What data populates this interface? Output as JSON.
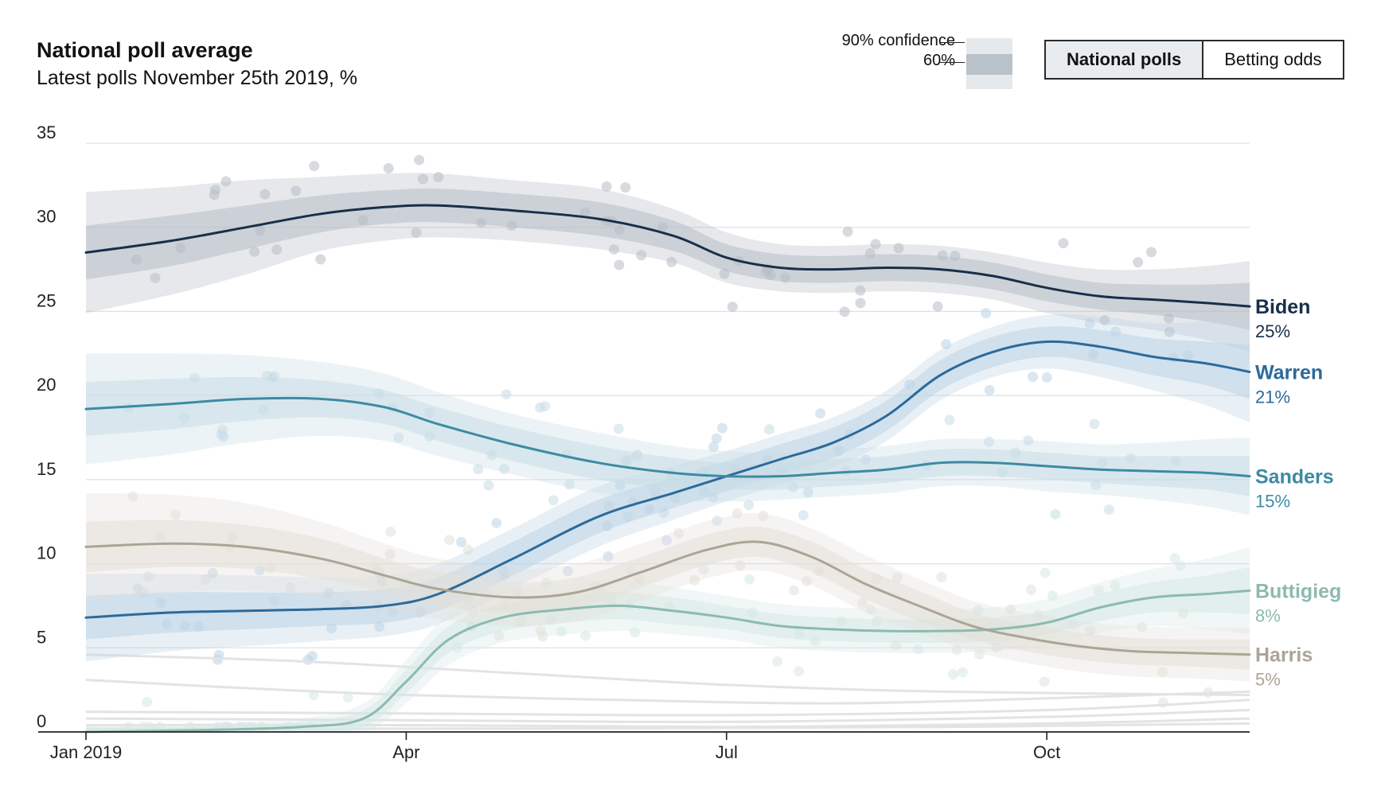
{
  "chart_data": {
    "type": "line",
    "title": "National poll average",
    "subtitle": "Latest polls November 25th 2019, %",
    "ylim": [
      0,
      35
    ],
    "yticks": [
      0,
      5,
      10,
      15,
      20,
      25,
      30,
      35
    ],
    "xlim": [
      0,
      10.9
    ],
    "xticks": [
      {
        "label": "Jan 2019",
        "x": 0
      },
      {
        "label": "Apr",
        "x": 3
      },
      {
        "label": "Jul",
        "x": 6
      },
      {
        "label": "Oct",
        "x": 9
      }
    ],
    "grid": true,
    "legend": {
      "confidence_90": "90% confidence",
      "confidence_60": "60%"
    },
    "toggle": {
      "national": "National polls",
      "betting": "Betting odds"
    },
    "series": [
      {
        "name": "Biden",
        "label": "25%",
        "color": "#172f4a",
        "band": "#b6bec7",
        "x": [
          0,
          0.8,
          1.5,
          2.2,
          2.8,
          3.3,
          4,
          4.8,
          5.5,
          6,
          6.5,
          7,
          7.5,
          8,
          8.5,
          9,
          9.5,
          10,
          10.5,
          10.9
        ],
        "values": [
          28.5,
          29.2,
          30,
          30.8,
          31.2,
          31.3,
          31,
          30.5,
          29.5,
          28.2,
          27.6,
          27.5,
          27.6,
          27.5,
          27.1,
          26.4,
          25.9,
          25.7,
          25.5,
          25.3
        ],
        "ci60": [
          1.6,
          1.5,
          1.3,
          1.1,
          1,
          1,
          1,
          1,
          0.9,
          0.8,
          0.8,
          0.8,
          0.8,
          0.8,
          0.8,
          0.8,
          0.8,
          0.9,
          1.1,
          1.4
        ],
        "ci90": [
          3.6,
          3.2,
          2.8,
          2.2,
          2,
          1.9,
          1.8,
          1.8,
          1.6,
          1.5,
          1.4,
          1.4,
          1.4,
          1.4,
          1.4,
          1.5,
          1.6,
          1.8,
          2.2,
          2.7
        ]
      },
      {
        "name": "Warren",
        "label": "21%",
        "color": "#2c6a9a",
        "band": "#bcd3e6",
        "x": [
          0,
          0.8,
          1.5,
          2.2,
          2.8,
          3.3,
          4,
          4.8,
          5.5,
          6,
          6.5,
          7,
          7.5,
          8,
          8.5,
          9,
          9.5,
          10,
          10.5,
          10.9
        ],
        "values": [
          6.8,
          7.1,
          7.2,
          7.3,
          7.5,
          8.2,
          10.3,
          12.8,
          14.2,
          15.2,
          16.2,
          17.2,
          18.8,
          21.2,
          22.6,
          23.2,
          22.9,
          22.3,
          21.9,
          21.4
        ],
        "ci60": [
          1.3,
          1.2,
          1.1,
          1,
          1,
          1,
          1,
          1,
          0.9,
          0.9,
          0.9,
          0.9,
          0.9,
          0.9,
          0.9,
          0.9,
          1,
          1.1,
          1.3,
          1.6
        ],
        "ci90": [
          2.6,
          2.3,
          2.1,
          1.9,
          1.8,
          1.8,
          1.8,
          1.8,
          1.6,
          1.5,
          1.5,
          1.5,
          1.5,
          1.5,
          1.5,
          1.6,
          1.8,
          2,
          2.5,
          3
        ]
      },
      {
        "name": "Sanders",
        "label": "15%",
        "color": "#3e8aa3",
        "band": "#c9dde6",
        "x": [
          0,
          0.8,
          1.5,
          2.2,
          2.8,
          3.3,
          4,
          4.8,
          5.5,
          6,
          6.5,
          7,
          7.5,
          8,
          8.5,
          9,
          9.5,
          10,
          10.5,
          10.9
        ],
        "values": [
          19.2,
          19.5,
          19.8,
          19.8,
          19.3,
          18.3,
          17.1,
          16,
          15.4,
          15.2,
          15.2,
          15.4,
          15.6,
          16,
          16,
          15.8,
          15.6,
          15.5,
          15.4,
          15.2
        ],
        "ci60": [
          1.6,
          1.5,
          1.3,
          1.1,
          1,
          1,
          1,
          1,
          0.9,
          0.8,
          0.8,
          0.8,
          0.8,
          0.8,
          0.8,
          0.8,
          0.8,
          0.9,
          1,
          1.2
        ],
        "ci90": [
          3.3,
          3,
          2.6,
          2.2,
          2,
          1.9,
          1.8,
          1.8,
          1.6,
          1.5,
          1.4,
          1.4,
          1.4,
          1.4,
          1.4,
          1.5,
          1.5,
          1.7,
          2,
          2.3
        ]
      },
      {
        "name": "Buttigieg",
        "label": "8%",
        "color": "#8cbab0",
        "band": "#d6e9e4",
        "x": [
          0,
          1,
          2,
          2.6,
          3,
          3.4,
          3.9,
          4.5,
          5,
          5.5,
          6,
          6.5,
          7,
          7.5,
          8,
          8.5,
          9,
          9.5,
          10,
          10.5,
          10.9
        ],
        "values": [
          0,
          0.1,
          0.3,
          0.8,
          3,
          5.5,
          6.8,
          7.3,
          7.5,
          7.2,
          6.8,
          6.3,
          6.1,
          6,
          6,
          6.1,
          6.5,
          7.4,
          8,
          8.2,
          8.4
        ],
        "ci60": [
          0.2,
          0.2,
          0.3,
          0.5,
          0.7,
          0.8,
          0.8,
          0.8,
          0.8,
          0.8,
          0.7,
          0.7,
          0.7,
          0.7,
          0.7,
          0.7,
          0.7,
          0.8,
          0.9,
          1.1,
          1.4
        ],
        "ci90": [
          0.4,
          0.4,
          0.5,
          0.9,
          1.3,
          1.5,
          1.5,
          1.5,
          1.5,
          1.4,
          1.3,
          1.3,
          1.3,
          1.3,
          1.3,
          1.3,
          1.4,
          1.5,
          1.7,
          2.1,
          2.6
        ]
      },
      {
        "name": "Harris",
        "label": "5%",
        "color": "#aba596",
        "band": "#e4e0d9",
        "x": [
          0,
          0.8,
          1.5,
          2.2,
          2.8,
          3.3,
          4,
          4.6,
          5.2,
          5.8,
          6.3,
          6.8,
          7.3,
          7.8,
          8.3,
          8.8,
          9.3,
          9.8,
          10.3,
          10.9
        ],
        "values": [
          11,
          11.2,
          11,
          10.3,
          9.3,
          8.5,
          8,
          8.3,
          9.5,
          10.8,
          11.3,
          10.4,
          8.8,
          7.5,
          6.3,
          5.6,
          5.1,
          4.8,
          4.7,
          4.6
        ],
        "ci60": [
          1.5,
          1.4,
          1.3,
          1.2,
          1,
          1,
          0.9,
          0.9,
          0.9,
          0.9,
          0.9,
          0.9,
          0.9,
          0.9,
          0.8,
          0.8,
          0.8,
          0.8,
          0.8,
          0.9
        ],
        "ci90": [
          3.2,
          2.9,
          2.6,
          2.2,
          1.9,
          1.8,
          1.7,
          1.7,
          1.7,
          1.7,
          1.7,
          1.7,
          1.7,
          1.6,
          1.5,
          1.5,
          1.5,
          1.5,
          1.5,
          1.6
        ]
      }
    ],
    "other_candidates": [
      {
        "x": [
          0,
          2,
          4,
          6,
          8,
          10.9
        ],
        "values": [
          4.6,
          4.2,
          3.5,
          2.8,
          2.4,
          2.2
        ]
      },
      {
        "x": [
          0,
          1.5,
          3,
          5,
          7,
          9,
          10.9
        ],
        "values": [
          3.1,
          2.6,
          2.2,
          1.9,
          1.7,
          2.0,
          2.4
        ]
      },
      {
        "x": [
          0,
          3,
          6,
          9,
          10.9
        ],
        "values": [
          1.2,
          1.1,
          1.0,
          1.3,
          1.9
        ]
      },
      {
        "x": [
          0,
          3,
          6,
          9,
          10.9
        ],
        "values": [
          0.8,
          0.7,
          0.6,
          0.9,
          1.3
        ]
      },
      {
        "x": [
          0,
          3,
          6,
          9,
          10.9
        ],
        "values": [
          0.4,
          0.4,
          0.3,
          0.5,
          0.8
        ]
      },
      {
        "x": [
          0,
          4,
          8,
          10.9
        ],
        "values": [
          0.2,
          0.2,
          0.3,
          0.5
        ]
      }
    ]
  }
}
